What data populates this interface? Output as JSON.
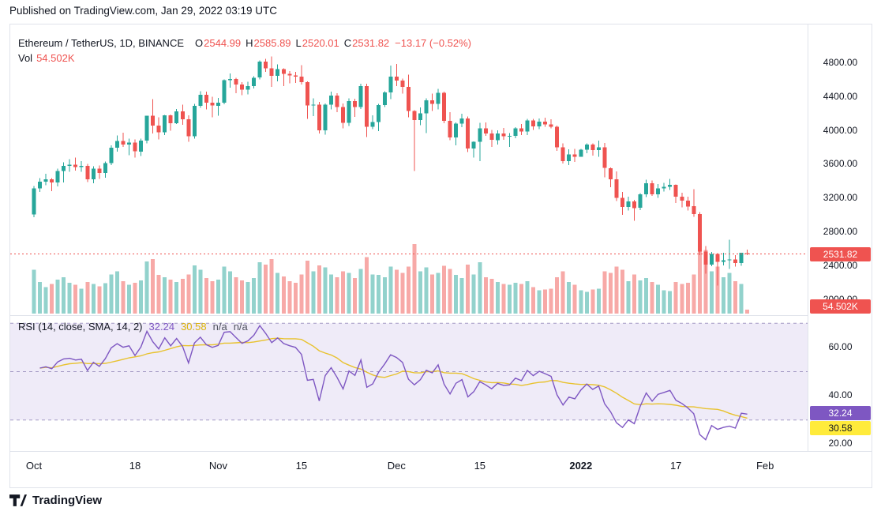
{
  "published_line": "Published on TradingView.com, Jan 29, 2022 03:19 UTC",
  "symbol_legend": {
    "title": "Ethereum / TetherUS, 1D, BINANCE",
    "o_label": "O",
    "o": "2544.99",
    "h_label": "H",
    "h": "2585.89",
    "l_label": "L",
    "l": "2520.01",
    "c_label": "C",
    "c": "2531.82",
    "change": "−13.17 (−0.52%)",
    "vol_label": "Vol",
    "vol": "54.502K"
  },
  "rsi_legend": {
    "title": "RSI (14, close, SMA, 14, 2)",
    "rsi_value": "32.24",
    "sma_value": "30.58",
    "na1": "n/a",
    "na2": "n/a"
  },
  "price_axis": {
    "last_price_badge": "2531.82",
    "volume_badge": "54.502K"
  },
  "rsi_axis": {
    "rsi_badge": "32.24",
    "sma_badge": "30.58"
  },
  "time_axis": [
    {
      "label": "Oct",
      "day": 0,
      "major": false
    },
    {
      "label": "18",
      "day": 17,
      "major": false
    },
    {
      "label": "Nov",
      "day": 31,
      "major": false
    },
    {
      "label": "15",
      "day": 45,
      "major": false
    },
    {
      "label": "Dec",
      "day": 61,
      "major": false
    },
    {
      "label": "15",
      "day": 75,
      "major": false
    },
    {
      "label": "2022",
      "day": 92,
      "major": true
    },
    {
      "label": "17",
      "day": 108,
      "major": false
    },
    {
      "label": "Feb",
      "day": 123,
      "major": false
    }
  ],
  "footer": {
    "brand": "TradingView"
  },
  "colors": {
    "up": "#26a69a",
    "down": "#ef5350",
    "vol_up": "rgba(38,166,154,0.5)",
    "vol_down": "rgba(239,83,80,0.5)",
    "rsi_line": "#7e57c2",
    "rsi_sma": "#e8c22e",
    "rsi_band": "rgba(126,87,194,0.12)",
    "rsi_level_line": "#a49ac4",
    "badge_price": "#ef5350",
    "badge_vol": "#ef5350",
    "badge_rsi": "#7e57c2",
    "badge_sma": "#ffeb3b",
    "last_price_line": "#ef5350",
    "text": "#131722",
    "border": "#e0e3eb"
  },
  "chart_data": {
    "type": "candlestick",
    "title": "Ethereum / TetherUS, 1D, BINANCE",
    "interval": "1D",
    "indicators": [
      "Volume",
      "RSI (14, close, SMA, 14, 2)"
    ],
    "price_ticks": [
      4800,
      4400,
      4000,
      3600,
      3200,
      2800,
      2400,
      2000
    ],
    "rsi_ticks": [
      60,
      40,
      20
    ],
    "rsi_levels": [
      70,
      50,
      30
    ],
    "last_close": 2531.82,
    "last_volume_k": 54.502,
    "last_rsi": 32.24,
    "last_rsi_sma": 30.58,
    "candles_format": [
      "date",
      "open",
      "high",
      "low",
      "close",
      "volume_k"
    ],
    "candles": [
      [
        "2021-10-01",
        3001,
        3336,
        2968,
        3310,
        580
      ],
      [
        "2021-10-02",
        3310,
        3430,
        3267,
        3389,
        420
      ],
      [
        "2021-10-03",
        3389,
        3480,
        3346,
        3418,
        350
      ],
      [
        "2021-10-04",
        3418,
        3433,
        3278,
        3380,
        390
      ],
      [
        "2021-10-05",
        3380,
        3545,
        3334,
        3515,
        450
      ],
      [
        "2021-10-06",
        3515,
        3620,
        3378,
        3575,
        480
      ],
      [
        "2021-10-07",
        3575,
        3656,
        3505,
        3588,
        410
      ],
      [
        "2021-10-08",
        3588,
        3675,
        3520,
        3562,
        380
      ],
      [
        "2021-10-09",
        3562,
        3630,
        3505,
        3576,
        330
      ],
      [
        "2021-10-10",
        3576,
        3599,
        3385,
        3417,
        420
      ],
      [
        "2021-10-11",
        3417,
        3570,
        3372,
        3545,
        390
      ],
      [
        "2021-10-12",
        3545,
        3580,
        3420,
        3490,
        360
      ],
      [
        "2021-10-13",
        3490,
        3628,
        3437,
        3607,
        400
      ],
      [
        "2021-10-14",
        3607,
        3818,
        3584,
        3791,
        520
      ],
      [
        "2021-10-15",
        3791,
        3934,
        3745,
        3868,
        560
      ],
      [
        "2021-10-16",
        3868,
        3970,
        3800,
        3827,
        430
      ],
      [
        "2021-10-17",
        3827,
        3900,
        3700,
        3851,
        380
      ],
      [
        "2021-10-18",
        3851,
        3890,
        3676,
        3746,
        410
      ],
      [
        "2021-10-19",
        3746,
        3900,
        3694,
        3876,
        440
      ],
      [
        "2021-10-20",
        3876,
        4171,
        3840,
        4167,
        690
      ],
      [
        "2021-10-21",
        4167,
        4366,
        3960,
        4052,
        720
      ],
      [
        "2021-10-22",
        4052,
        4150,
        3890,
        3971,
        510
      ],
      [
        "2021-10-23",
        3971,
        4180,
        3940,
        4173,
        480
      ],
      [
        "2021-10-24",
        4173,
        4185,
        3992,
        4082,
        450
      ],
      [
        "2021-10-25",
        4082,
        4250,
        4070,
        4220,
        420
      ],
      [
        "2021-10-26",
        4220,
        4300,
        4060,
        4129,
        460
      ],
      [
        "2021-10-27",
        4129,
        4175,
        3860,
        3924,
        520
      ],
      [
        "2021-10-28",
        3924,
        4310,
        3900,
        4288,
        640
      ],
      [
        "2021-10-29",
        4288,
        4460,
        4262,
        4418,
        580
      ],
      [
        "2021-10-30",
        4418,
        4455,
        4245,
        4322,
        470
      ],
      [
        "2021-10-31",
        4322,
        4393,
        4150,
        4288,
        430
      ],
      [
        "2021-11-01",
        4288,
        4378,
        4168,
        4324,
        450
      ],
      [
        "2021-11-02",
        4324,
        4600,
        4306,
        4589,
        620
      ],
      [
        "2021-11-03",
        4589,
        4670,
        4500,
        4604,
        560
      ],
      [
        "2021-11-04",
        4604,
        4620,
        4437,
        4540,
        480
      ],
      [
        "2021-11-05",
        4540,
        4568,
        4413,
        4478,
        440
      ],
      [
        "2021-11-06",
        4478,
        4570,
        4422,
        4521,
        420
      ],
      [
        "2021-11-07",
        4521,
        4635,
        4490,
        4620,
        470
      ],
      [
        "2021-11-08",
        4620,
        4825,
        4601,
        4808,
        680
      ],
      [
        "2021-11-09",
        4808,
        4842,
        4688,
        4731,
        650
      ],
      [
        "2021-11-10",
        4731,
        4868,
        4510,
        4641,
        720
      ],
      [
        "2021-11-11",
        4641,
        4778,
        4577,
        4720,
        540
      ],
      [
        "2021-11-12",
        4720,
        4730,
        4520,
        4666,
        490
      ],
      [
        "2021-11-13",
        4666,
        4695,
        4552,
        4645,
        430
      ],
      [
        "2021-11-14",
        4645,
        4690,
        4555,
        4630,
        410
      ],
      [
        "2021-11-15",
        4630,
        4765,
        4540,
        4567,
        520
      ],
      [
        "2021-11-16",
        4567,
        4576,
        4133,
        4290,
        700
      ],
      [
        "2021-11-17",
        4290,
        4373,
        4166,
        4300,
        560
      ],
      [
        "2021-11-18",
        4300,
        4333,
        3959,
        3997,
        640
      ],
      [
        "2021-11-19",
        3997,
        4312,
        3943,
        4298,
        610
      ],
      [
        "2021-11-20",
        4298,
        4452,
        4243,
        4408,
        520
      ],
      [
        "2021-11-21",
        4408,
        4436,
        4209,
        4270,
        480
      ],
      [
        "2021-11-22",
        4270,
        4315,
        4020,
        4086,
        560
      ],
      [
        "2021-11-23",
        4086,
        4375,
        4050,
        4340,
        540
      ],
      [
        "2021-11-24",
        4340,
        4370,
        4155,
        4271,
        470
      ],
      [
        "2021-11-25",
        4271,
        4550,
        4247,
        4519,
        590
      ],
      [
        "2021-11-26",
        4519,
        4550,
        3917,
        4038,
        750
      ],
      [
        "2021-11-27",
        4038,
        4175,
        4010,
        4093,
        520
      ],
      [
        "2021-11-28",
        4093,
        4310,
        3985,
        4294,
        510
      ],
      [
        "2021-11-29",
        4294,
        4457,
        4273,
        4445,
        480
      ],
      [
        "2021-11-30",
        4445,
        4764,
        4365,
        4631,
        620
      ],
      [
        "2021-12-01",
        4631,
        4780,
        4519,
        4587,
        580
      ],
      [
        "2021-12-02",
        4587,
        4607,
        4430,
        4512,
        540
      ],
      [
        "2021-12-03",
        4512,
        4653,
        4150,
        4225,
        620
      ],
      [
        "2021-12-04",
        4225,
        4236,
        3517,
        4118,
        920
      ],
      [
        "2021-12-05",
        4118,
        4265,
        4055,
        4198,
        560
      ],
      [
        "2021-12-06",
        4198,
        4376,
        3963,
        4352,
        610
      ],
      [
        "2021-12-07",
        4352,
        4433,
        4225,
        4309,
        520
      ],
      [
        "2021-12-08",
        4309,
        4486,
        4246,
        4439,
        540
      ],
      [
        "2021-12-09",
        4439,
        4455,
        4080,
        4109,
        630
      ],
      [
        "2021-12-10",
        4109,
        4210,
        3880,
        3912,
        590
      ],
      [
        "2021-12-11",
        3912,
        4090,
        3820,
        4077,
        510
      ],
      [
        "2021-12-12",
        4077,
        4194,
        4033,
        4135,
        470
      ],
      [
        "2021-12-13",
        4135,
        4162,
        3740,
        3782,
        650
      ],
      [
        "2021-12-14",
        3782,
        3865,
        3672,
        3861,
        520
      ],
      [
        "2021-12-15",
        3861,
        4085,
        3634,
        4020,
        680
      ],
      [
        "2021-12-16",
        4020,
        4089,
        3932,
        3957,
        480
      ],
      [
        "2021-12-17",
        3957,
        4002,
        3801,
        3882,
        460
      ],
      [
        "2021-12-18",
        3882,
        3998,
        3827,
        3961,
        420
      ],
      [
        "2021-12-19",
        3961,
        4022,
        3885,
        3926,
        390
      ],
      [
        "2021-12-20",
        3926,
        3965,
        3800,
        3932,
        380
      ],
      [
        "2021-12-21",
        3932,
        4032,
        3904,
        4019,
        410
      ],
      [
        "2021-12-22",
        4019,
        4073,
        3938,
        3982,
        390
      ],
      [
        "2021-12-23",
        3982,
        4134,
        3942,
        4111,
        430
      ],
      [
        "2021-12-24",
        4111,
        4130,
        4003,
        4043,
        350
      ],
      [
        "2021-12-25",
        4043,
        4135,
        4011,
        4098,
        310
      ],
      [
        "2021-12-26",
        4098,
        4144,
        4040,
        4068,
        320
      ],
      [
        "2021-12-27",
        4068,
        4125,
        4021,
        4037,
        330
      ],
      [
        "2021-12-28",
        4037,
        4051,
        3755,
        3794,
        480
      ],
      [
        "2021-12-29",
        3794,
        3841,
        3604,
        3630,
        560
      ],
      [
        "2021-12-30",
        3630,
        3772,
        3585,
        3709,
        420
      ],
      [
        "2021-12-31",
        3709,
        3778,
        3622,
        3683,
        380
      ],
      [
        "2022-01-01",
        3683,
        3775,
        3682,
        3769,
        310
      ],
      [
        "2022-01-02",
        3769,
        3840,
        3723,
        3829,
        290
      ],
      [
        "2022-01-03",
        3829,
        3844,
        3698,
        3761,
        320
      ],
      [
        "2022-01-04",
        3761,
        3876,
        3684,
        3794,
        330
      ],
      [
        "2022-01-05",
        3794,
        3846,
        3440,
        3550,
        560
      ],
      [
        "2022-01-06",
        3550,
        3555,
        3322,
        3418,
        540
      ],
      [
        "2022-01-07",
        3418,
        3510,
        3160,
        3199,
        620
      ],
      [
        "2022-01-08",
        3199,
        3268,
        2997,
        3091,
        580
      ],
      [
        "2022-01-09",
        3091,
        3210,
        3050,
        3157,
        430
      ],
      [
        "2022-01-10",
        3157,
        3173,
        2928,
        3078,
        520
      ],
      [
        "2022-01-11",
        3078,
        3251,
        3054,
        3238,
        440
      ],
      [
        "2022-01-12",
        3238,
        3411,
        3205,
        3371,
        470
      ],
      [
        "2022-01-13",
        3371,
        3401,
        3222,
        3239,
        420
      ],
      [
        "2022-01-14",
        3239,
        3363,
        3195,
        3310,
        380
      ],
      [
        "2022-01-15",
        3310,
        3375,
        3273,
        3330,
        310
      ],
      [
        "2022-01-16",
        3330,
        3420,
        3290,
        3350,
        300
      ],
      [
        "2022-01-17",
        3350,
        3355,
        3135,
        3212,
        420
      ],
      [
        "2022-01-18",
        3212,
        3257,
        3085,
        3164,
        390
      ],
      [
        "2022-01-19",
        3164,
        3213,
        3050,
        3097,
        410
      ],
      [
        "2022-01-20",
        3097,
        3298,
        2975,
        3005,
        520
      ],
      [
        "2022-01-21",
        3005,
        3030,
        2520,
        2560,
        880
      ],
      [
        "2022-01-22",
        2560,
        2625,
        2300,
        2406,
        840
      ],
      [
        "2022-01-23",
        2406,
        2555,
        2390,
        2535,
        560
      ],
      [
        "2022-01-24",
        2535,
        2545,
        2160,
        2440,
        620
      ],
      [
        "2022-01-25",
        2440,
        2550,
        2400,
        2457,
        480
      ],
      [
        "2022-01-26",
        2457,
        2700,
        2356,
        2468,
        540
      ],
      [
        "2022-01-27",
        2468,
        2520,
        2383,
        2425,
        430
      ],
      [
        "2022-01-28",
        2425,
        2550,
        2394,
        2546,
        390
      ],
      [
        "2022-01-29",
        2544.99,
        2585.89,
        2520.01,
        2531.82,
        54.5
      ]
    ]
  }
}
